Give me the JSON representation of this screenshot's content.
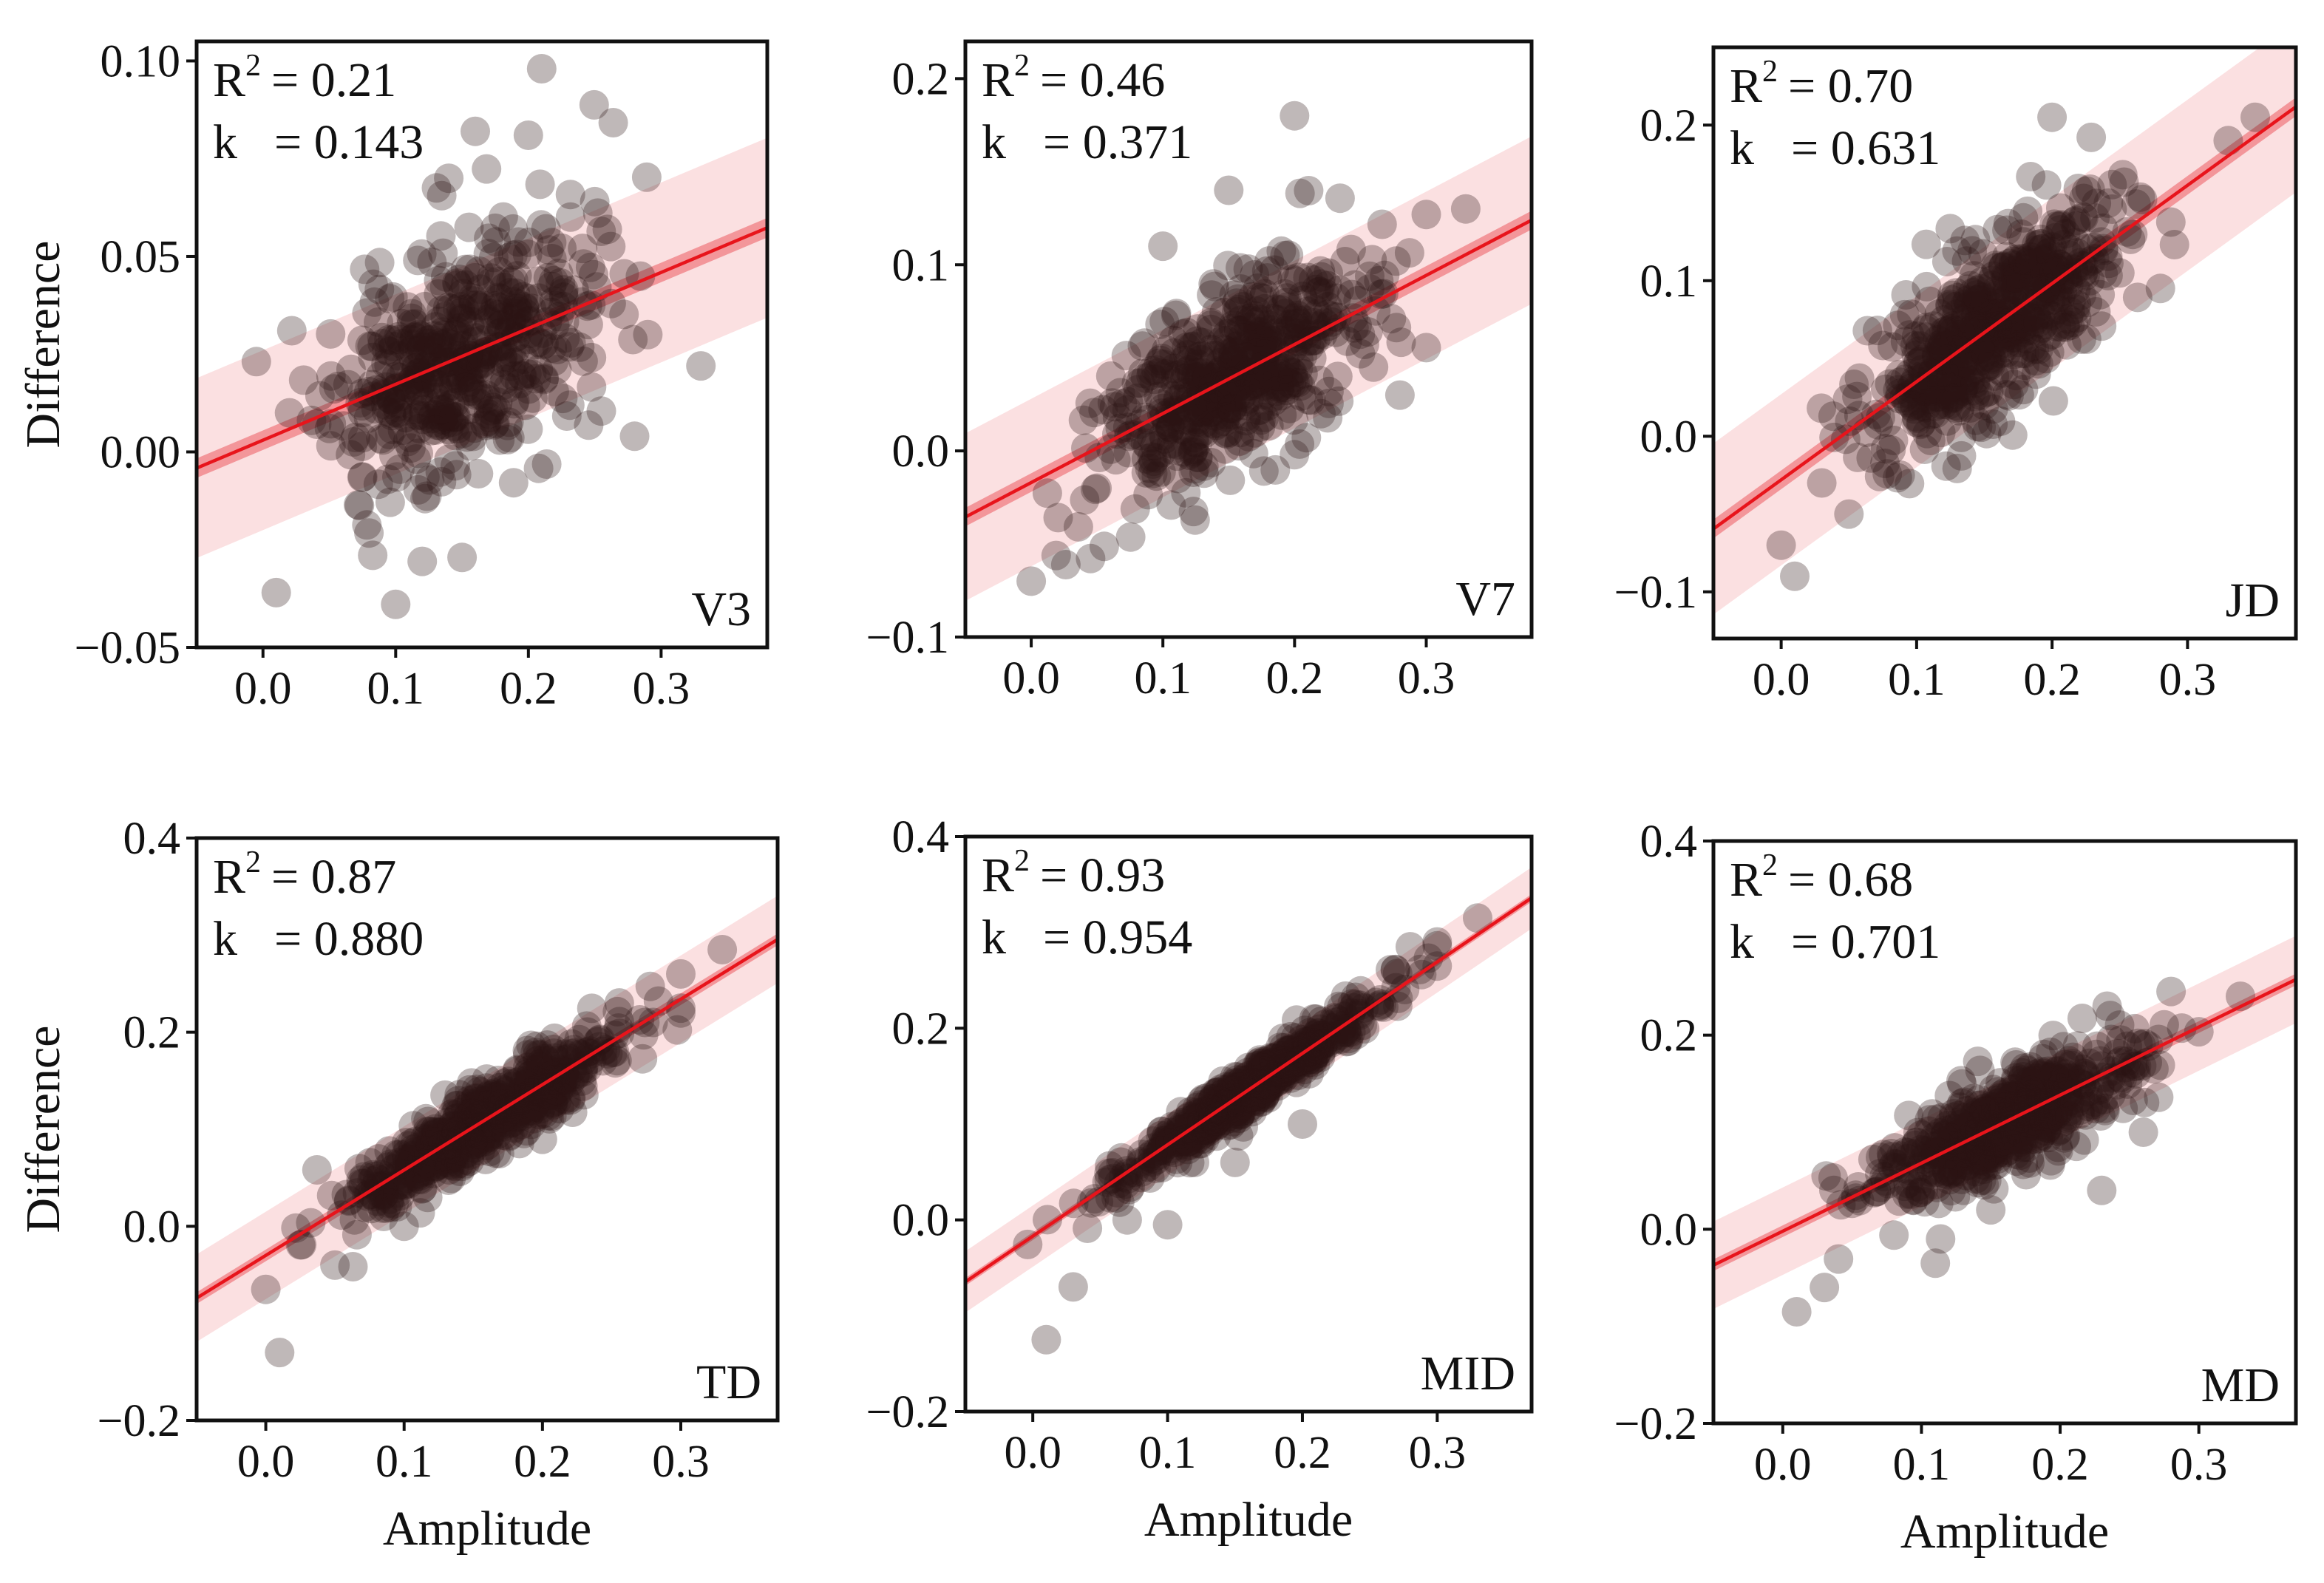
{
  "colors": {
    "point": "#2a1515",
    "fit_line": "#e8141b",
    "prediction_band": "#f7c6c8",
    "confidence_band": "#ec5a61",
    "axis": "#111111"
  },
  "chart_data": [
    {
      "type": "scatter",
      "panel_label": "V3",
      "r2_label": "R",
      "r2_sup": "2",
      "r2_value": "= 0.21",
      "k_label": "k",
      "k_value": "= 0.143",
      "xlabel": "",
      "ylabel": "Difference",
      "xlim": [
        -0.05,
        0.38
      ],
      "ylim": [
        -0.05,
        0.105
      ],
      "xticks": [
        0.0,
        0.1,
        0.2,
        0.3
      ],
      "xtick_labels": [
        "0.0",
        "0.1",
        "0.2",
        "0.3"
      ],
      "yticks": [
        -0.05,
        0.0,
        0.05,
        0.1
      ],
      "ytick_labels": [
        "−0.05",
        "0.00",
        "0.05",
        "0.10"
      ],
      "fit": {
        "slope": 0.143,
        "intercept": 0.003,
        "ci": 0.0025,
        "pi": 0.023
      },
      "cloud": {
        "n": 500,
        "center": 0.15,
        "spread": 0.048,
        "noise": 0.0145,
        "seed": 11
      },
      "outliers": [
        [
          0.21,
          0.098
        ],
        [
          0.2,
          0.081
        ],
        [
          0.16,
          0.082
        ],
        [
          0.14,
          0.07
        ],
        [
          0.25,
          0.064
        ],
        [
          0.01,
          -0.036
        ],
        [
          0.1,
          -0.039
        ],
        [
          0.29,
          0.03
        ],
        [
          0.33,
          0.022
        ],
        [
          0.28,
          0.004
        ],
        [
          0.12,
          -0.028
        ],
        [
          0.15,
          -0.027
        ],
        [
          0.02,
          0.01
        ]
      ]
    },
    {
      "type": "scatter",
      "panel_label": "V7",
      "r2_label": "R",
      "r2_sup": "2",
      "r2_value": "= 0.46",
      "k_label": "k",
      "k_value": "= 0.371",
      "xlabel": "",
      "ylabel": "",
      "xlim": [
        -0.05,
        0.38
      ],
      "ylim": [
        -0.1,
        0.22
      ],
      "xticks": [
        0.0,
        0.1,
        0.2,
        0.3
      ],
      "xtick_labels": [
        "0.0",
        "0.1",
        "0.2",
        "0.3"
      ],
      "yticks": [
        -0.1,
        0.0,
        0.1,
        0.2
      ],
      "ytick_labels": [
        "−0.1",
        "0.0",
        "0.1",
        "0.2"
      ],
      "fit": {
        "slope": 0.371,
        "intercept": -0.017,
        "ci": 0.005,
        "pi": 0.045
      },
      "cloud": {
        "n": 520,
        "center": 0.15,
        "spread": 0.048,
        "noise": 0.024,
        "seed": 23
      },
      "outliers": [
        [
          0.2,
          0.18
        ],
        [
          0.15,
          0.14
        ],
        [
          0.0,
          -0.07
        ],
        [
          0.28,
          0.03
        ],
        [
          0.33,
          0.13
        ],
        [
          0.3,
          0.127
        ],
        [
          0.26,
          0.045
        ],
        [
          0.1,
          0.11
        ],
        [
          0.22,
          0.02
        ],
        [
          0.05,
          -0.02
        ]
      ]
    },
    {
      "type": "scatter",
      "panel_label": "JD",
      "r2_label": "R",
      "r2_sup": "2",
      "r2_value": "= 0.70",
      "k_label": "k",
      "k_value": "= 0.631",
      "xlabel": "",
      "ylabel": "",
      "xlim": [
        -0.05,
        0.38
      ],
      "ylim": [
        -0.13,
        0.25
      ],
      "xticks": [
        0.0,
        0.1,
        0.2,
        0.3
      ],
      "xtick_labels": [
        "0.0",
        "0.1",
        "0.2",
        "0.3"
      ],
      "yticks": [
        -0.1,
        0.0,
        0.1,
        0.2
      ],
      "ytick_labels": [
        "−0.1",
        "0.0",
        "0.1",
        "0.2"
      ],
      "fit": {
        "slope": 0.631,
        "intercept": -0.028,
        "ci": 0.006,
        "pi": 0.055
      },
      "cloud": {
        "n": 560,
        "center": 0.16,
        "spread": 0.045,
        "noise": 0.027,
        "seed": 37
      },
      "outliers": [
        [
          0.01,
          -0.09
        ],
        [
          0.0,
          -0.07
        ],
        [
          0.2,
          0.205
        ],
        [
          0.33,
          0.19
        ],
        [
          0.35,
          0.205
        ],
        [
          0.28,
          0.095
        ],
        [
          0.25,
          0.105
        ],
        [
          0.05,
          -0.05
        ],
        [
          0.03,
          -0.03
        ],
        [
          0.15,
          0.02
        ]
      ]
    },
    {
      "type": "scatter",
      "panel_label": "TD",
      "r2_label": "R",
      "r2_sup": "2",
      "r2_value": "= 0.87",
      "k_label": "k",
      "k_value": "= 0.880",
      "xlabel": "Amplitude",
      "ylabel": "Difference",
      "xlim": [
        -0.05,
        0.37
      ],
      "ylim": [
        -0.2,
        0.4
      ],
      "xticks": [
        0.0,
        0.1,
        0.2,
        0.3
      ],
      "xtick_labels": [
        "0.0",
        "0.1",
        "0.2",
        "0.3"
      ],
      "yticks": [
        -0.2,
        0.0,
        0.2,
        0.4
      ],
      "ytick_labels": [
        "−0.2",
        "0.0",
        "0.2",
        "0.4"
      ],
      "fit": {
        "slope": 0.88,
        "intercept": -0.03,
        "ci": 0.006,
        "pi": 0.045
      },
      "cloud": {
        "n": 560,
        "center": 0.16,
        "spread": 0.048,
        "noise": 0.02,
        "seed": 41
      },
      "outliers": [
        [
          0.01,
          -0.13
        ],
        [
          0.0,
          -0.065
        ],
        [
          0.3,
          0.26
        ],
        [
          0.33,
          0.285
        ],
        [
          0.28,
          0.21
        ],
        [
          0.1,
          0.0
        ],
        [
          0.05,
          -0.04
        ],
        [
          0.24,
          0.19
        ]
      ]
    },
    {
      "type": "scatter",
      "panel_label": "MID",
      "r2_label": "R",
      "r2_sup": "2",
      "r2_value": "= 0.93",
      "k_label": "k",
      "k_value": "= 0.954",
      "xlabel": "Amplitude",
      "ylabel": "",
      "xlim": [
        -0.05,
        0.37
      ],
      "ylim": [
        -0.2,
        0.4
      ],
      "xticks": [
        0.0,
        0.1,
        0.2,
        0.3
      ],
      "xtick_labels": [
        "0.0",
        "0.1",
        "0.2",
        "0.3"
      ],
      "yticks": [
        -0.2,
        0.0,
        0.2,
        0.4
      ],
      "ytick_labels": [
        "−0.2",
        "0.0",
        "0.2",
        "0.4"
      ],
      "fit": {
        "slope": 0.954,
        "intercept": -0.017,
        "ci": 0.004,
        "pi": 0.032
      },
      "cloud": {
        "n": 560,
        "center": 0.16,
        "spread": 0.048,
        "noise": 0.012,
        "seed": 53
      },
      "outliers": [
        [
          0.01,
          -0.125
        ],
        [
          0.03,
          -0.07
        ],
        [
          0.1,
          -0.005
        ],
        [
          0.3,
          0.29
        ],
        [
          0.33,
          0.315
        ],
        [
          0.28,
          0.285
        ],
        [
          0.2,
          0.1
        ],
        [
          0.07,
          0.0
        ],
        [
          0.12,
          0.06
        ],
        [
          0.15,
          0.06
        ]
      ]
    },
    {
      "type": "scatter",
      "panel_label": "MD",
      "r2_label": "R",
      "r2_sup": "2",
      "r2_value": "= 0.68",
      "k_label": "k",
      "k_value": "= 0.701",
      "xlabel": "Amplitude",
      "ylabel": "",
      "xlim": [
        -0.05,
        0.37
      ],
      "ylim": [
        -0.2,
        0.4
      ],
      "xticks": [
        0.0,
        0.1,
        0.2,
        0.3
      ],
      "xtick_labels": [
        "0.0",
        "0.1",
        "0.2",
        "0.3"
      ],
      "yticks": [
        -0.2,
        0.0,
        0.2,
        0.4
      ],
      "ytick_labels": [
        "−0.2",
        "0.0",
        "0.2",
        "0.4"
      ],
      "fit": {
        "slope": 0.701,
        "intercept": -0.002,
        "ci": 0.006,
        "pi": 0.045
      },
      "cloud": {
        "n": 560,
        "center": 0.16,
        "spread": 0.048,
        "noise": 0.024,
        "seed": 67
      },
      "outliers": [
        [
          0.01,
          -0.085
        ],
        [
          0.03,
          -0.06
        ],
        [
          0.11,
          -0.035
        ],
        [
          0.28,
          0.245
        ],
        [
          0.33,
          0.24
        ],
        [
          0.23,
          0.04
        ],
        [
          0.15,
          0.02
        ],
        [
          0.26,
          0.1
        ]
      ]
    }
  ]
}
